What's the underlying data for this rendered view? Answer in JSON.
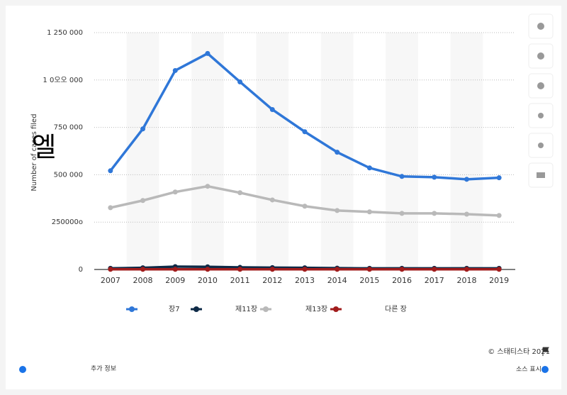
{
  "chart_data": {
    "type": "line",
    "ylabel": "Number of cases filed",
    "overlay_text": "엘",
    "categories": [
      "2007",
      "2008",
      "2009",
      "2010",
      "2011",
      "2012",
      "2013",
      "2014",
      "2015",
      "2016",
      "2017",
      "2018",
      "2019"
    ],
    "series": [
      {
        "name": "장7",
        "color": "#2f77d8",
        "values": [
          521000,
          742000,
          1050000,
          1140000,
          990000,
          844000,
          727000,
          619000,
          536000,
          491000,
          487000,
          476000,
          484000
        ]
      },
      {
        "name": "제11장",
        "color": "#0e2a47",
        "values": [
          6000,
          9000,
          15000,
          14000,
          11000,
          10000,
          9000,
          7000,
          6000,
          6000,
          6000,
          6000,
          6000
        ]
      },
      {
        "name": "제13장",
        "color": "#b9b9b9",
        "values": [
          326000,
          364000,
          409000,
          439000,
          405000,
          367000,
          334000,
          311000,
          304000,
          296000,
          296000,
          292000,
          285000
        ]
      },
      {
        "name": "다른 장",
        "color": "#a11c1c",
        "values": [
          1000,
          1000,
          1000,
          1000,
          1000,
          1000,
          1000,
          1000,
          1000,
          1000,
          1000,
          1000,
          1000
        ]
      }
    ],
    "ylim": [
      0,
      1250000
    ],
    "yticks": [
      0,
      {
        "value": 250000,
        "label": "250000o"
      },
      {
        "value": 500000,
        "label": "500 000"
      },
      {
        "value": 750000,
        "label": "750 000"
      },
      {
        "value": 1000000,
        "label": "1 0오오 000"
      },
      {
        "value": 1250000,
        "label": "1 250 000"
      }
    ],
    "grid": true,
    "footer": {
      "copyright": "© 스태티스타 2021",
      "more_info": "추가 정보",
      "show_source": "소스 표시"
    }
  }
}
